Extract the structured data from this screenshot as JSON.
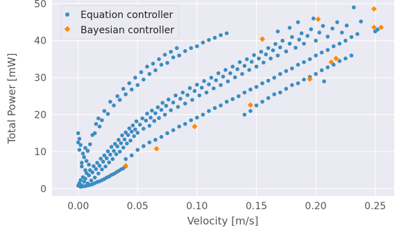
{
  "chart_data": {
    "type": "scatter",
    "xlabel": "Velocity [m/s]",
    "ylabel": "Total Power [mW]",
    "xlim": [
      -0.022,
      0.266
    ],
    "ylim": [
      -2,
      51
    ],
    "x_ticks": [
      0.0,
      0.05,
      0.1,
      0.15,
      0.2,
      0.25
    ],
    "x_tick_labels": [
      "0.00",
      "0.05",
      "0.10",
      "0.15",
      "0.20",
      "0.25"
    ],
    "y_ticks": [
      0,
      10,
      20,
      30,
      40,
      50
    ],
    "y_tick_labels": [
      "0",
      "10",
      "20",
      "30",
      "40",
      "50"
    ],
    "grid": true,
    "background_color": "#eaeaf2",
    "legend_position": "top-left",
    "series": [
      {
        "name": "Equation controller",
        "marker": "circle",
        "color": "#3a8cc1",
        "points": [
          [
            0.0,
            0.8
          ],
          [
            0.001,
            1.5
          ],
          [
            0.002,
            2.3
          ],
          [
            0.003,
            0.9
          ],
          [
            0.004,
            3.1
          ],
          [
            0.005,
            1.9
          ],
          [
            0.006,
            2.7
          ],
          [
            0.007,
            4.2
          ],
          [
            0.008,
            1.4
          ],
          [
            0.009,
            3.6
          ],
          [
            0.01,
            5.0
          ],
          [
            0.011,
            2.2
          ],
          [
            0.012,
            4.4
          ],
          [
            0.013,
            6.1
          ],
          [
            0.014,
            3.0
          ],
          [
            0.015,
            5.3
          ],
          [
            0.016,
            7.0
          ],
          [
            0.017,
            4.1
          ],
          [
            0.018,
            6.2
          ],
          [
            0.019,
            8.1
          ],
          [
            0.02,
            5.2
          ],
          [
            0.021,
            7.3
          ],
          [
            0.022,
            9.0
          ],
          [
            0.023,
            6.0
          ],
          [
            0.024,
            8.2
          ],
          [
            0.025,
            10.1
          ],
          [
            0.026,
            7.1
          ],
          [
            0.027,
            9.2
          ],
          [
            0.028,
            11.3
          ],
          [
            0.029,
            8.0
          ],
          [
            0.03,
            10.2
          ],
          [
            0.031,
            12.1
          ],
          [
            0.032,
            9.3
          ],
          [
            0.033,
            11.4
          ],
          [
            0.034,
            13.2
          ],
          [
            0.035,
            10.0
          ],
          [
            0.036,
            12.3
          ],
          [
            0.037,
            14.4
          ],
          [
            0.038,
            11.1
          ],
          [
            0.039,
            13.3
          ],
          [
            0.04,
            15.2
          ],
          [
            0.041,
            12.2
          ],
          [
            0.042,
            14.5
          ],
          [
            0.043,
            16.3
          ],
          [
            0.044,
            13.0
          ],
          [
            0.045,
            15.4
          ],
          [
            0.046,
            17.1
          ],
          [
            0.047,
            14.2
          ],
          [
            0.048,
            16.0
          ],
          [
            0.049,
            18.2
          ],
          [
            0.05,
            15.1
          ],
          [
            0.052,
            17.3
          ],
          [
            0.054,
            19.0
          ],
          [
            0.055,
            16.2
          ],
          [
            0.057,
            18.4
          ],
          [
            0.058,
            20.3
          ],
          [
            0.06,
            17.0
          ],
          [
            0.061,
            19.2
          ],
          [
            0.062,
            21.1
          ],
          [
            0.064,
            18.3
          ],
          [
            0.065,
            20.4
          ],
          [
            0.067,
            22.0
          ],
          [
            0.068,
            19.1
          ],
          [
            0.07,
            21.3
          ],
          [
            0.071,
            23.2
          ],
          [
            0.073,
            20.0
          ],
          [
            0.074,
            22.4
          ],
          [
            0.076,
            24.1
          ],
          [
            0.078,
            21.2
          ],
          [
            0.08,
            23.3
          ],
          [
            0.082,
            25.2
          ],
          [
            0.084,
            22.1
          ],
          [
            0.086,
            24.3
          ],
          [
            0.088,
            26.0
          ],
          [
            0.09,
            23.0
          ],
          [
            0.092,
            25.3
          ],
          [
            0.094,
            27.2
          ],
          [
            0.096,
            24.0
          ],
          [
            0.098,
            26.4
          ],
          [
            0.1,
            28.1
          ],
          [
            0.102,
            25.2
          ],
          [
            0.104,
            27.3
          ],
          [
            0.106,
            29.1
          ],
          [
            0.108,
            26.0
          ],
          [
            0.11,
            28.2
          ],
          [
            0.112,
            30.0
          ],
          [
            0.114,
            27.1
          ],
          [
            0.116,
            29.3
          ],
          [
            0.118,
            31.2
          ],
          [
            0.12,
            28.0
          ],
          [
            0.122,
            30.3
          ],
          [
            0.124,
            32.1
          ],
          [
            0.126,
            29.0
          ],
          [
            0.128,
            31.2
          ],
          [
            0.13,
            33.0
          ],
          [
            0.132,
            30.1
          ],
          [
            0.134,
            32.3
          ],
          [
            0.136,
            34.2
          ],
          [
            0.138,
            31.0
          ],
          [
            0.14,
            33.2
          ],
          [
            0.142,
            35.0
          ],
          [
            0.144,
            32.1
          ],
          [
            0.146,
            34.3
          ],
          [
            0.148,
            36.1
          ],
          [
            0.15,
            33.0
          ],
          [
            0.152,
            35.2
          ],
          [
            0.154,
            37.0
          ],
          [
            0.156,
            34.1
          ],
          [
            0.158,
            36.3
          ],
          [
            0.16,
            38.0
          ],
          [
            0.162,
            35.2
          ],
          [
            0.164,
            37.4
          ],
          [
            0.166,
            39.1
          ],
          [
            0.168,
            36.0
          ],
          [
            0.17,
            38.2
          ],
          [
            0.172,
            40.0
          ],
          [
            0.175,
            37.1
          ],
          [
            0.178,
            39.2
          ],
          [
            0.18,
            41.0
          ],
          [
            0.183,
            38.1
          ],
          [
            0.186,
            40.3
          ],
          [
            0.188,
            42.0
          ],
          [
            0.19,
            39.2
          ],
          [
            0.193,
            41.3
          ],
          [
            0.196,
            43.1
          ],
          [
            0.2,
            40.0
          ],
          [
            0.203,
            42.2
          ],
          [
            0.206,
            44.0
          ],
          [
            0.21,
            41.1
          ],
          [
            0.214,
            43.3
          ],
          [
            0.218,
            45.0
          ],
          [
            0.222,
            42.2
          ],
          [
            0.226,
            44.1
          ],
          [
            0.232,
            49.0
          ],
          [
            0.238,
            45.2
          ],
          [
            0.25,
            42.5
          ],
          [
            0.252,
            43.0
          ],
          [
            0.005,
            8.5
          ],
          [
            0.008,
            10.2
          ],
          [
            0.01,
            12.0
          ],
          [
            0.003,
            7.0
          ],
          [
            0.012,
            14.5
          ],
          [
            0.006,
            11.0
          ],
          [
            0.014,
            15.0
          ],
          [
            0.018,
            16.8
          ],
          [
            0.02,
            18.5
          ],
          [
            0.025,
            20.2
          ],
          [
            0.03,
            22.5
          ],
          [
            0.035,
            24.0
          ],
          [
            0.04,
            25.5
          ],
          [
            0.045,
            26.8
          ],
          [
            0.05,
            28.0
          ],
          [
            0.055,
            29.5
          ],
          [
            0.06,
            31.0
          ],
          [
            0.065,
            32.0
          ],
          [
            0.07,
            33.5
          ],
          [
            0.075,
            34.0
          ],
          [
            0.08,
            35.5
          ],
          [
            0.085,
            36.0
          ],
          [
            0.09,
            37.2
          ],
          [
            0.095,
            38.0
          ],
          [
            0.1,
            38.5
          ],
          [
            0.105,
            39.5
          ],
          [
            0.11,
            40.2
          ],
          [
            0.115,
            40.8
          ],
          [
            0.12,
            41.5
          ],
          [
            0.125,
            42.0
          ],
          [
            0.04,
            8.0
          ],
          [
            0.045,
            9.0
          ],
          [
            0.05,
            10.5
          ],
          [
            0.055,
            11.5
          ],
          [
            0.06,
            12.5
          ],
          [
            0.065,
            13.2
          ],
          [
            0.07,
            14.0
          ],
          [
            0.075,
            15.0
          ],
          [
            0.08,
            15.8
          ],
          [
            0.085,
            16.8
          ],
          [
            0.09,
            17.5
          ],
          [
            0.095,
            18.5
          ],
          [
            0.1,
            19.2
          ],
          [
            0.105,
            20.0
          ],
          [
            0.11,
            21.0
          ],
          [
            0.115,
            21.8
          ],
          [
            0.12,
            22.5
          ],
          [
            0.125,
            23.5
          ],
          [
            0.13,
            24.2
          ],
          [
            0.135,
            25.0
          ],
          [
            0.14,
            26.0
          ],
          [
            0.145,
            26.8
          ],
          [
            0.15,
            27.5
          ],
          [
            0.155,
            28.5
          ],
          [
            0.16,
            29.2
          ],
          [
            0.165,
            30.0
          ],
          [
            0.17,
            31.0
          ],
          [
            0.175,
            31.8
          ],
          [
            0.18,
            32.5
          ],
          [
            0.185,
            33.5
          ],
          [
            0.19,
            34.2
          ],
          [
            0.195,
            35.0
          ],
          [
            0.2,
            36.0
          ],
          [
            0.205,
            36.8
          ],
          [
            0.21,
            37.5
          ],
          [
            0.215,
            38.5
          ],
          [
            0.22,
            39.2
          ],
          [
            0.225,
            40.0
          ],
          [
            0.23,
            41.0
          ],
          [
            0.235,
            41.8
          ],
          [
            0.002,
            0.5
          ],
          [
            0.004,
            0.6
          ],
          [
            0.006,
            0.7
          ],
          [
            0.008,
            0.9
          ],
          [
            0.01,
            1.0
          ],
          [
            0.012,
            1.2
          ],
          [
            0.014,
            1.5
          ],
          [
            0.016,
            1.8
          ],
          [
            0.018,
            2.0
          ],
          [
            0.02,
            2.3
          ],
          [
            0.022,
            2.6
          ],
          [
            0.024,
            3.0
          ],
          [
            0.026,
            3.3
          ],
          [
            0.028,
            3.7
          ],
          [
            0.03,
            4.0
          ],
          [
            0.032,
            4.4
          ],
          [
            0.034,
            4.8
          ],
          [
            0.036,
            5.2
          ],
          [
            0.038,
            5.5
          ],
          [
            0.04,
            6.0
          ],
          [
            0.0,
            12.5
          ],
          [
            0.001,
            13.5
          ],
          [
            0.0,
            15.0
          ],
          [
            0.002,
            11.8
          ],
          [
            0.004,
            9.5
          ],
          [
            0.001,
            10.5
          ],
          [
            0.003,
            6.0
          ],
          [
            0.006,
            5.0
          ],
          [
            0.007,
            7.5
          ],
          [
            0.009,
            6.5
          ],
          [
            0.015,
            17.5
          ],
          [
            0.017,
            19.0
          ],
          [
            0.022,
            21.0
          ],
          [
            0.027,
            23.5
          ],
          [
            0.033,
            25.0
          ],
          [
            0.038,
            27.0
          ],
          [
            0.043,
            28.5
          ],
          [
            0.048,
            30.0
          ],
          [
            0.053,
            31.5
          ],
          [
            0.058,
            33.0
          ],
          [
            0.063,
            33.8
          ],
          [
            0.068,
            35.0
          ],
          [
            0.073,
            36.2
          ],
          [
            0.078,
            37.0
          ],
          [
            0.083,
            38.0
          ],
          [
            0.155,
            40.5
          ],
          [
            0.168,
            42.5
          ],
          [
            0.178,
            43.5
          ],
          [
            0.185,
            45.0
          ],
          [
            0.198,
            46.0
          ],
          [
            0.14,
            20.0
          ],
          [
            0.145,
            21.0
          ],
          [
            0.15,
            22.5
          ],
          [
            0.155,
            23.5
          ],
          [
            0.16,
            24.5
          ],
          [
            0.165,
            25.5
          ],
          [
            0.17,
            26.0
          ],
          [
            0.175,
            27.0
          ],
          [
            0.18,
            28.0
          ],
          [
            0.185,
            28.5
          ],
          [
            0.19,
            29.5
          ],
          [
            0.195,
            30.2
          ],
          [
            0.2,
            31.0
          ],
          [
            0.205,
            32.0
          ],
          [
            0.21,
            32.8
          ],
          [
            0.215,
            33.5
          ],
          [
            0.22,
            34.5
          ],
          [
            0.225,
            35.2
          ],
          [
            0.23,
            36.0
          ],
          [
            0.207,
            29.0
          ]
        ]
      },
      {
        "name": "Bayesian controller",
        "marker": "diamond",
        "color": "#ff8a00",
        "points": [
          [
            0.04,
            6.2
          ],
          [
            0.066,
            10.8
          ],
          [
            0.098,
            16.8
          ],
          [
            0.145,
            22.6
          ],
          [
            0.155,
            40.4
          ],
          [
            0.195,
            29.6
          ],
          [
            0.202,
            45.8
          ],
          [
            0.213,
            34.2
          ],
          [
            0.217,
            35.2
          ],
          [
            0.249,
            48.6
          ],
          [
            0.249,
            43.6
          ],
          [
            0.255,
            43.6
          ]
        ]
      }
    ]
  }
}
